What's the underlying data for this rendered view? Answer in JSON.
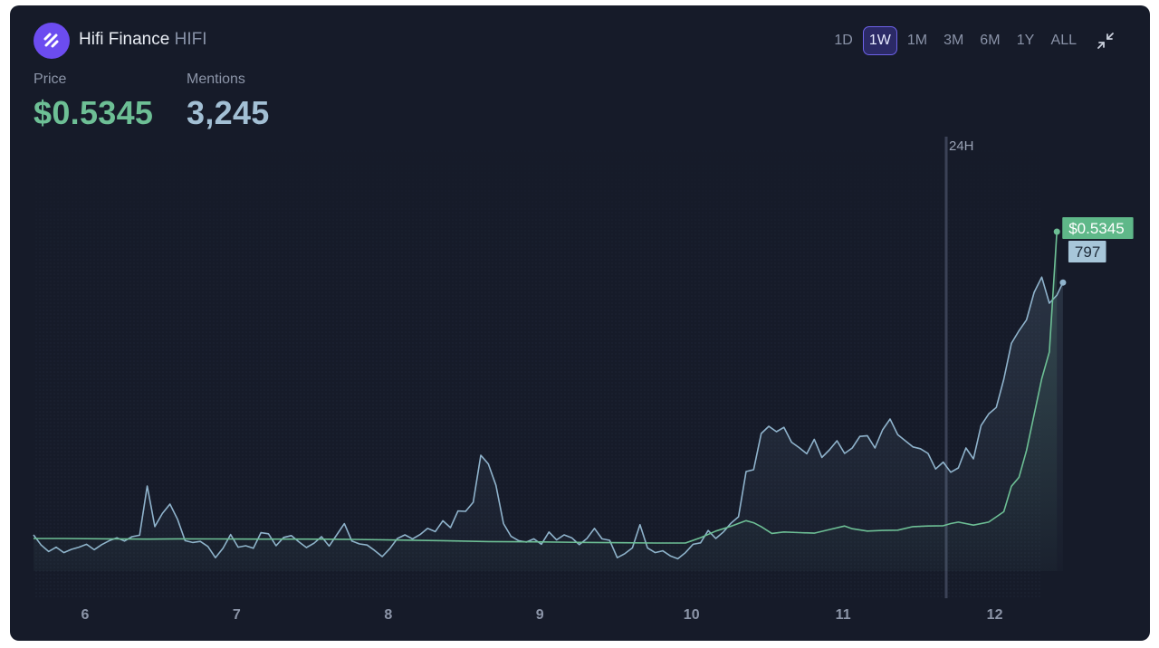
{
  "asset": {
    "name": "Hifi Finance",
    "symbol": "HIFI"
  },
  "ranges": [
    {
      "label": "1D",
      "active": false
    },
    {
      "label": "1W",
      "active": true
    },
    {
      "label": "1M",
      "active": false
    },
    {
      "label": "3M",
      "active": false
    },
    {
      "label": "6M",
      "active": false
    },
    {
      "label": "1Y",
      "active": false
    },
    {
      "label": "ALL",
      "active": false
    }
  ],
  "metrics": {
    "price": {
      "label": "Price",
      "value": "$0.5345"
    },
    "mentions": {
      "label": "Mentions",
      "value": "3,245"
    }
  },
  "icons": {
    "logo": "hifi-logo-icon",
    "collapse": "collapse-arrows-icon"
  },
  "colors": {
    "background": "#161b29",
    "price_line": "#6dbf95",
    "mentions_line": "#8fb3cc",
    "price_badge": "#5fb889",
    "mentions_badge": "#a7c6d9",
    "accent": "#6c4cf0"
  },
  "chart_data": {
    "type": "line",
    "x_tick_labels": [
      "6",
      "7",
      "8",
      "9",
      "10",
      "11",
      "12"
    ],
    "x_range": [
      5.66,
      12.97
    ],
    "marker": {
      "label": "24H",
      "x": 11.68
    },
    "series": [
      {
        "key": "mentions",
        "axis": "right",
        "last_label": "797",
        "points": [
          [
            5.66,
            100
          ],
          [
            5.71,
            72
          ],
          [
            5.76,
            54
          ],
          [
            5.81,
            66
          ],
          [
            5.86,
            51
          ],
          [
            5.91,
            60
          ],
          [
            5.96,
            66
          ],
          [
            6.01,
            74
          ],
          [
            6.06,
            59
          ],
          [
            6.11,
            73
          ],
          [
            6.16,
            84
          ],
          [
            6.21,
            92
          ],
          [
            6.26,
            83
          ],
          [
            6.31,
            95
          ],
          [
            6.36,
            99
          ],
          [
            6.41,
            235
          ],
          [
            6.46,
            123
          ],
          [
            6.51,
            159
          ],
          [
            6.56,
            185
          ],
          [
            6.61,
            143
          ],
          [
            6.66,
            84
          ],
          [
            6.71,
            79
          ],
          [
            6.76,
            82
          ],
          [
            6.81,
            68
          ],
          [
            6.86,
            37
          ],
          [
            6.91,
            63
          ],
          [
            6.96,
            101
          ],
          [
            7.01,
            66
          ],
          [
            7.06,
            70
          ],
          [
            7.11,
            63
          ],
          [
            7.16,
            106
          ],
          [
            7.21,
            103
          ],
          [
            7.26,
            70
          ],
          [
            7.31,
            93
          ],
          [
            7.36,
            98
          ],
          [
            7.41,
            81
          ],
          [
            7.46,
            65
          ],
          [
            7.51,
            77
          ],
          [
            7.56,
            95
          ],
          [
            7.61,
            69
          ],
          [
            7.66,
            100
          ],
          [
            7.71,
            131
          ],
          [
            7.76,
            83
          ],
          [
            7.81,
            75
          ],
          [
            7.86,
            72
          ],
          [
            7.91,
            57
          ],
          [
            7.96,
            40
          ],
          [
            8.01,
            62
          ],
          [
            8.06,
            90
          ],
          [
            8.11,
            100
          ],
          [
            8.16,
            89
          ],
          [
            8.21,
            101
          ],
          [
            8.26,
            118
          ],
          [
            8.31,
            109
          ],
          [
            8.36,
            139
          ],
          [
            8.41,
            120
          ],
          [
            8.46,
            166
          ],
          [
            8.51,
            165
          ],
          [
            8.56,
            190
          ],
          [
            8.61,
            320
          ],
          [
            8.66,
            296
          ],
          [
            8.71,
            237
          ],
          [
            8.76,
            131
          ],
          [
            8.81,
            96
          ],
          [
            8.86,
            84
          ],
          [
            8.91,
            80
          ],
          [
            8.96,
            89
          ],
          [
            9.01,
            74
          ],
          [
            9.06,
            108
          ],
          [
            9.11,
            86
          ],
          [
            9.16,
            100
          ],
          [
            9.21,
            92
          ],
          [
            9.26,
            73
          ],
          [
            9.31,
            90
          ],
          [
            9.36,
            118
          ],
          [
            9.41,
            89
          ],
          [
            9.46,
            85
          ],
          [
            9.51,
            37
          ],
          [
            9.56,
            48
          ],
          [
            9.61,
            64
          ],
          [
            9.66,
            128
          ],
          [
            9.71,
            64
          ],
          [
            9.76,
            51
          ],
          [
            9.81,
            56
          ],
          [
            9.86,
            42
          ],
          [
            9.91,
            34
          ],
          [
            9.96,
            51
          ],
          [
            10.01,
            74
          ],
          [
            10.06,
            78
          ],
          [
            10.11,
            112
          ],
          [
            10.16,
            90
          ],
          [
            10.21,
            108
          ],
          [
            10.26,
            132
          ],
          [
            10.31,
            150
          ],
          [
            10.36,
            275
          ],
          [
            10.41,
            280
          ],
          [
            10.46,
            380
          ],
          [
            10.51,
            400
          ],
          [
            10.56,
            385
          ],
          [
            10.61,
            397
          ],
          [
            10.66,
            356
          ],
          [
            10.71,
            341
          ],
          [
            10.76,
            324
          ],
          [
            10.81,
            364
          ],
          [
            10.86,
            314
          ],
          [
            10.91,
            335
          ],
          [
            10.96,
            360
          ],
          [
            11.01,
            325
          ],
          [
            11.06,
            340
          ],
          [
            11.11,
            372
          ],
          [
            11.16,
            374
          ],
          [
            11.21,
            340
          ],
          [
            11.26,
            390
          ],
          [
            11.31,
            420
          ],
          [
            11.36,
            377
          ],
          [
            11.41,
            360
          ],
          [
            11.46,
            343
          ],
          [
            11.51,
            338
          ],
          [
            11.56,
            325
          ],
          [
            11.61,
            282
          ],
          [
            11.66,
            301
          ],
          [
            11.71,
            273
          ],
          [
            11.76,
            285
          ],
          [
            11.81,
            340
          ],
          [
            11.86,
            310
          ],
          [
            11.91,
            402
          ],
          [
            11.96,
            434
          ],
          [
            12.01,
            452
          ],
          [
            12.06,
            530
          ],
          [
            12.11,
            629
          ],
          [
            12.16,
            664
          ],
          [
            12.21,
            694
          ],
          [
            12.26,
            770
          ],
          [
            12.31,
            812
          ],
          [
            12.36,
            740
          ],
          [
            12.41,
            762
          ],
          [
            12.45,
            797
          ]
        ]
      },
      {
        "key": "price",
        "axis": "left",
        "last_label": "$0.5345",
        "points": [
          [
            5.66,
            0.329
          ],
          [
            5.86,
            0.329
          ],
          [
            6.16,
            0.3288
          ],
          [
            6.41,
            0.3286
          ],
          [
            6.61,
            0.3288
          ],
          [
            6.86,
            0.3287
          ],
          [
            7.16,
            0.3286
          ],
          [
            7.46,
            0.3286
          ],
          [
            7.76,
            0.3284
          ],
          [
            8.06,
            0.328
          ],
          [
            8.36,
            0.3276
          ],
          [
            8.66,
            0.327
          ],
          [
            8.96,
            0.3268
          ],
          [
            9.26,
            0.3264
          ],
          [
            9.56,
            0.3262
          ],
          [
            9.76,
            0.326
          ],
          [
            9.96,
            0.326
          ],
          [
            10.06,
            0.3296
          ],
          [
            10.16,
            0.334
          ],
          [
            10.26,
            0.3372
          ],
          [
            10.36,
            0.341
          ],
          [
            10.41,
            0.3396
          ],
          [
            10.46,
            0.337
          ],
          [
            10.53,
            0.3324
          ],
          [
            10.61,
            0.3334
          ],
          [
            10.71,
            0.333
          ],
          [
            10.81,
            0.3326
          ],
          [
            10.91,
            0.335
          ],
          [
            11.01,
            0.3374
          ],
          [
            11.06,
            0.3356
          ],
          [
            11.16,
            0.334
          ],
          [
            11.26,
            0.3344
          ],
          [
            11.36,
            0.3346
          ],
          [
            11.46,
            0.337
          ],
          [
            11.56,
            0.3374
          ],
          [
            11.66,
            0.3376
          ],
          [
            11.71,
            0.339
          ],
          [
            11.76,
            0.34
          ],
          [
            11.86,
            0.338
          ],
          [
            11.96,
            0.34
          ],
          [
            12.06,
            0.347
          ],
          [
            12.11,
            0.364
          ],
          [
            12.16,
            0.37
          ],
          [
            12.21,
            0.388
          ],
          [
            12.26,
            0.412
          ],
          [
            12.31,
            0.436
          ],
          [
            12.36,
            0.454
          ],
          [
            12.41,
            0.5345
          ]
        ]
      }
    ]
  }
}
